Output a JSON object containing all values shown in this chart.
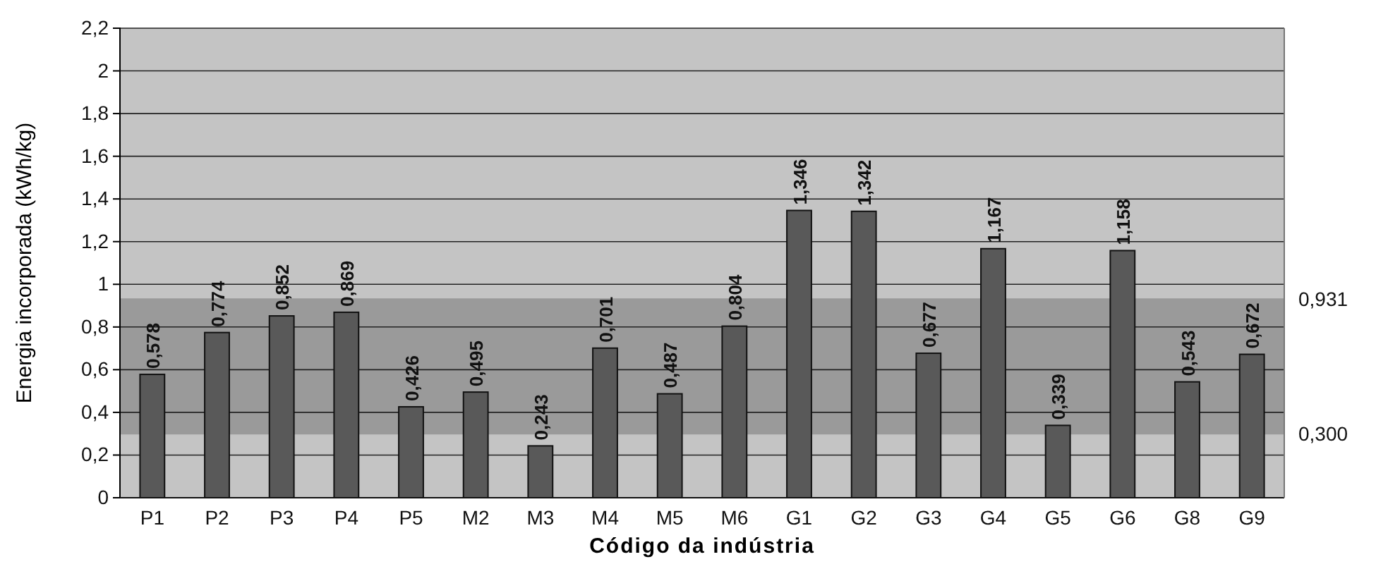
{
  "chart_data": {
    "type": "bar",
    "xlabel": "Código da indústria",
    "ylabel": "Energia incorporada (kWh/kg)",
    "categories": [
      "P1",
      "P2",
      "P3",
      "P4",
      "P5",
      "M2",
      "M3",
      "M4",
      "M5",
      "M6",
      "G1",
      "G2",
      "G3",
      "G4",
      "G5",
      "G6",
      "G8",
      "G9"
    ],
    "values": [
      0.578,
      0.774,
      0.852,
      0.869,
      0.426,
      0.495,
      0.243,
      0.701,
      0.487,
      0.804,
      1.346,
      1.342,
      0.677,
      1.167,
      0.339,
      1.158,
      0.543,
      0.672
    ],
    "value_labels": [
      "0,578",
      "0,774",
      "0,852",
      "0,869",
      "0,426",
      "0,495",
      "0,243",
      "0,701",
      "0,487",
      "0,804",
      "1,346",
      "1,342",
      "0,677",
      "1,167",
      "0,339",
      "1,158",
      "0,543",
      "0,672"
    ],
    "color": "#595959",
    "ylim": [
      0,
      2.2
    ],
    "yticks": [
      0,
      {
        "value": 0.2,
        "label": "0,2"
      },
      {
        "value": 0.4,
        "label": "0,4"
      },
      {
        "value": 0.6,
        "label": "0,6"
      },
      {
        "value": 0.8,
        "label": "0,8"
      },
      1,
      {
        "value": 1.2,
        "label": "1,2"
      },
      {
        "value": 1.4,
        "label": "1,4"
      },
      {
        "value": 1.6,
        "label": "1,6"
      },
      {
        "value": 1.8,
        "label": "1,8"
      },
      2,
      {
        "value": 2.2,
        "label": "2,2"
      }
    ],
    "grid": "y",
    "bands": [
      {
        "axis": "y",
        "from": 0.3,
        "to": 0.931,
        "color": "#9a9a9a"
      }
    ],
    "ref_lines": [
      {
        "axis": "y",
        "value": 0.931,
        "label": "0,931",
        "color": "#9a9a9a"
      },
      {
        "axis": "y",
        "value": 0.3,
        "label": "0,300",
        "color": "#9a9a9a"
      }
    ]
  }
}
